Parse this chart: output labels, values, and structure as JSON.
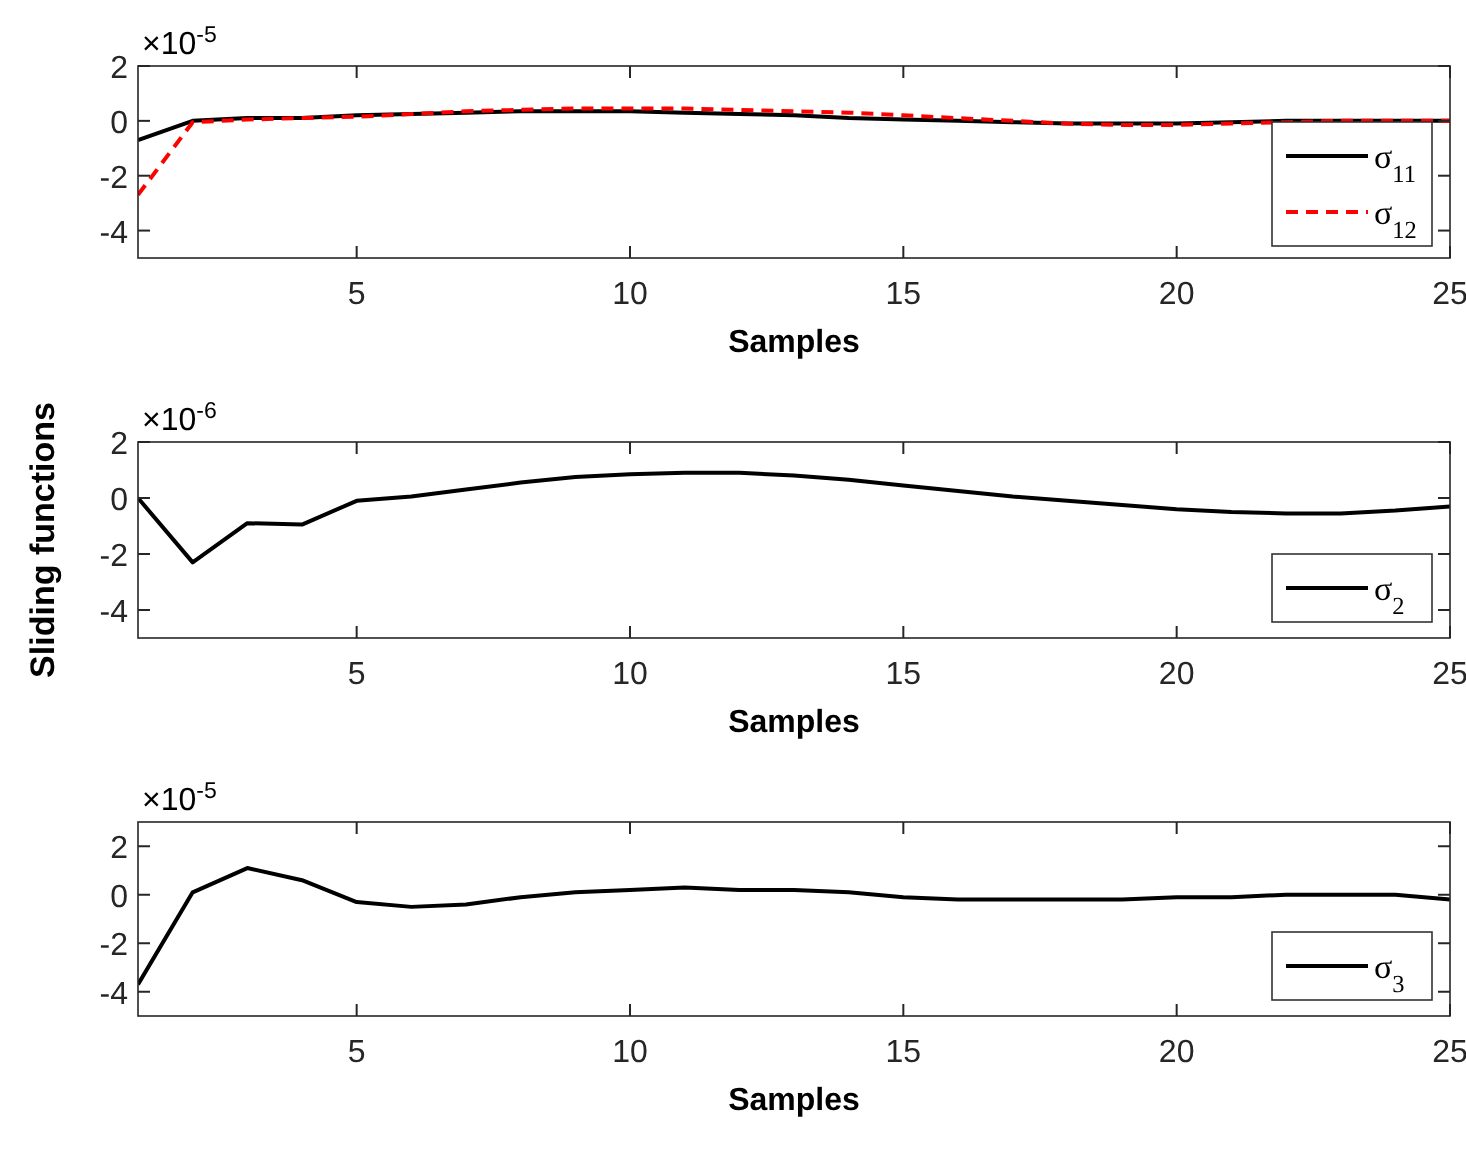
{
  "chart_data": [
    {
      "type": "line",
      "xlabel": "Samples",
      "annotations": [
        "×10$^{-5}$"
      ],
      "x": [
        1,
        2,
        3,
        4,
        5,
        6,
        7,
        8,
        9,
        10,
        11,
        12,
        13,
        14,
        15,
        16,
        17,
        18,
        19,
        20,
        21,
        22,
        23,
        24,
        25
      ],
      "xlim": [
        1,
        25
      ],
      "xticks": [
        5,
        10,
        15,
        20,
        25
      ],
      "ylim": [
        -5,
        2
      ],
      "yticks": [
        -4,
        -2,
        0,
        2
      ],
      "legend": "right",
      "series": [
        {
          "name": "σ$_{11}$",
          "color": "#000000",
          "line_style": "solid",
          "values": [
            -0.7,
            0,
            0.1,
            0.1,
            0.2,
            0.25,
            0.3,
            0.35,
            0.35,
            0.35,
            0.3,
            0.25,
            0.2,
            0.1,
            0.05,
            0,
            -0.05,
            -0.1,
            -0.1,
            -0.1,
            -0.05,
            0,
            0,
            0,
            0
          ]
        },
        {
          "name": "σ$_{12}$",
          "color": "#ff0000",
          "line_style": "dashed",
          "values": [
            -2.7,
            -0.05,
            0.05,
            0.1,
            0.15,
            0.25,
            0.35,
            0.4,
            0.45,
            0.45,
            0.45,
            0.4,
            0.35,
            0.3,
            0.2,
            0.1,
            0,
            -0.1,
            -0.15,
            -0.15,
            -0.1,
            -0.05,
            0,
            0,
            0
          ]
        }
      ]
    },
    {
      "type": "line",
      "xlabel": "Samples",
      "ylabel": "Sliding functions",
      "annotations": [
        "×10$^{-6}$"
      ],
      "x": [
        1,
        2,
        3,
        4,
        5,
        6,
        7,
        8,
        9,
        10,
        11,
        12,
        13,
        14,
        15,
        16,
        17,
        18,
        19,
        20,
        21,
        22,
        23,
        24,
        25
      ],
      "xlim": [
        1,
        25
      ],
      "xticks": [
        5,
        10,
        15,
        20,
        25
      ],
      "ylim": [
        -5,
        2
      ],
      "yticks": [
        -4,
        -2,
        0,
        2
      ],
      "legend": "bottom right",
      "series": [
        {
          "name": "σ$_{2}$",
          "color": "#000000",
          "line_style": "solid",
          "values": [
            0,
            -2.3,
            -0.9,
            -0.95,
            -0.1,
            0.05,
            0.3,
            0.55,
            0.75,
            0.85,
            0.9,
            0.9,
            0.8,
            0.65,
            0.45,
            0.25,
            0.05,
            -0.1,
            -0.25,
            -0.4,
            -0.5,
            -0.55,
            -0.55,
            -0.45,
            -0.3
          ]
        }
      ]
    },
    {
      "type": "line",
      "xlabel": "Samples",
      "annotations": [
        "×10$^{-5}$"
      ],
      "x": [
        1,
        2,
        3,
        4,
        5,
        6,
        7,
        8,
        9,
        10,
        11,
        12,
        13,
        14,
        15,
        16,
        17,
        18,
        19,
        20,
        21,
        22,
        23,
        24,
        25
      ],
      "xlim": [
        1,
        25
      ],
      "xticks": [
        5,
        10,
        15,
        20,
        25
      ],
      "ylim": [
        -5,
        3
      ],
      "yticks": [
        -4,
        -2,
        0,
        2
      ],
      "legend": "bottom right",
      "series": [
        {
          "name": "σ$_{3}$",
          "color": "#000000",
          "line_style": "solid",
          "values": [
            -3.7,
            0.1,
            1.1,
            0.6,
            -0.3,
            -0.5,
            -0.4,
            -0.1,
            0.1,
            0.2,
            0.3,
            0.2,
            0.2,
            0.1,
            -0.1,
            -0.2,
            -0.2,
            -0.2,
            -0.2,
            -0.1,
            -0.1,
            0,
            0,
            0,
            -0.2
          ]
        }
      ]
    }
  ]
}
